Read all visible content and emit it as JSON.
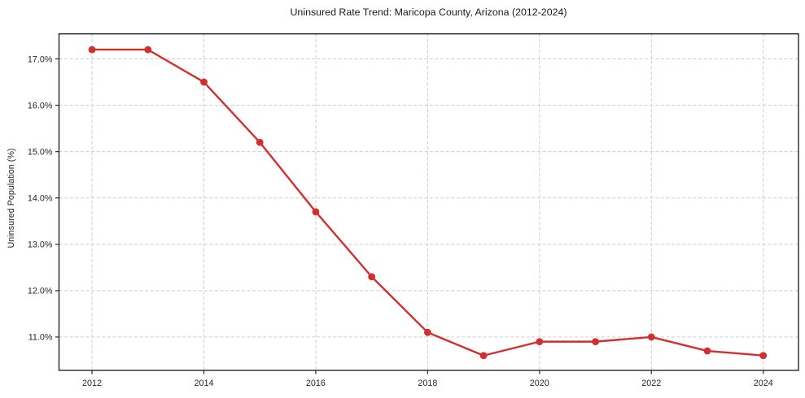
{
  "figure": {
    "background": "#ffffff"
  },
  "chart_data": {
    "type": "line",
    "title": "Uninsured Rate Trend: Maricopa County, Arizona (2012-2024)",
    "xlabel": "",
    "ylabel": "Uninsured Population (%)",
    "x": [
      2012,
      2013,
      2014,
      2015,
      2016,
      2017,
      2018,
      2019,
      2020,
      2021,
      2022,
      2023,
      2024
    ],
    "values": [
      17.2,
      17.2,
      16.5,
      15.2,
      13.7,
      12.3,
      11.1,
      10.6,
      10.9,
      10.9,
      11.0,
      10.7,
      10.6
    ],
    "xticks": {
      "values": [
        2012,
        2014,
        2016,
        2018,
        2020,
        2022,
        2024
      ],
      "labels": [
        "2012",
        "2014",
        "2016",
        "2018",
        "2020",
        "2022",
        "2024"
      ]
    },
    "yticks": {
      "values": [
        11,
        12,
        13,
        14,
        15,
        16,
        17
      ],
      "labels": [
        "11.0%",
        "12.0%",
        "13.0%",
        "14.0%",
        "15.0%",
        "16.0%",
        "17.0%"
      ]
    },
    "xlim": [
      2011.41,
      2024.63
    ],
    "ylim": [
      10.28,
      17.54
    ],
    "grid": true,
    "legend": false,
    "marker": "circle",
    "line_color": "#d32f2f",
    "grid_color": "#cccccc",
    "axis_color": "#262626",
    "text_color": "#262626",
    "background": "#ffffff"
  }
}
